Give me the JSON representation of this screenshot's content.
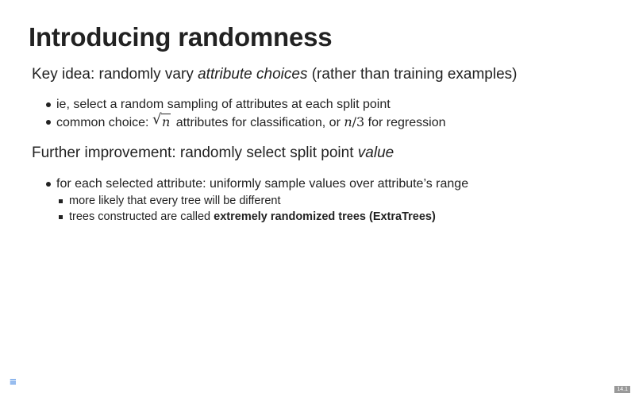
{
  "slide": {
    "title": "Introducing randomness",
    "section1": {
      "lead_prefix": "Key idea: randomly vary ",
      "lead_emph": "attribute choices",
      "lead_suffix": " (rather than training examples)",
      "bullets": [
        {
          "text": "ie, select a random sampling of attributes at each split point"
        },
        {
          "prefix": "common choice: ",
          "sqrt_var": "n",
          "middle": " attributes for classification, or ",
          "frac_var": "n",
          "frac_rest": "/3",
          "suffix": " for regression"
        }
      ]
    },
    "section2": {
      "lead_prefix": "Further improvement: randomly select split point ",
      "lead_emph": "value",
      "bullets": [
        {
          "text": "for each selected attribute: uniformly sample values over attribute’s range",
          "subbullets": [
            {
              "text": "more likely that every tree will be different"
            },
            {
              "prefix": "trees constructed are called ",
              "strong": "extremely randomized trees (ExtraTrees)"
            }
          ]
        }
      ]
    }
  },
  "controls": {
    "menu_icon": "menu-icon",
    "menu_glyph": "≡",
    "slide_number": "14.1"
  },
  "colors": {
    "text": "#222222",
    "menu_icon": "#2a76dd",
    "slide_number_bg": "#999999"
  }
}
